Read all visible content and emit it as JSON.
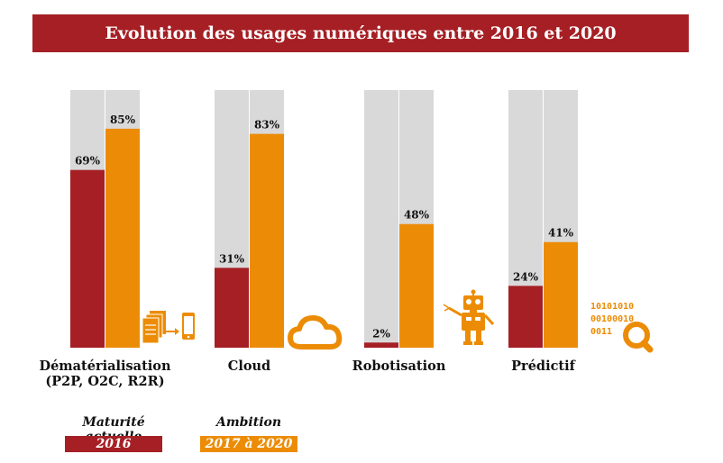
{
  "title": "Evolution des usages numériques entre 2016 et 2020",
  "colors": {
    "actual": "#a51f24",
    "ambition": "#ec8c06",
    "track": "#d9d9d9",
    "banner": "#a51f24"
  },
  "icons": [
    "documents-to-mobile-icon",
    "cloud-icon",
    "robot-icon",
    "binary-search-icon"
  ],
  "chart_data": {
    "type": "bar",
    "title": "Evolution des usages numériques entre 2016 et 2020",
    "ylim": [
      0,
      100
    ],
    "grid": false,
    "legend_position": "bottom-left",
    "categories": [
      {
        "line1": "Dématérialisation",
        "line2": "(P2P, O2C, R2R)"
      },
      {
        "line1": "Cloud",
        "line2": ""
      },
      {
        "line1": "Robotisation",
        "line2": ""
      },
      {
        "line1": "Prédictif",
        "line2": ""
      }
    ],
    "series": [
      {
        "name": "2016",
        "values": [
          69,
          31,
          2,
          24
        ],
        "labels": [
          "69%",
          "31%",
          "2%",
          "24%"
        ]
      },
      {
        "name": "2017 à 2020",
        "values": [
          85,
          83,
          48,
          41
        ],
        "labels": [
          "85%",
          "83%",
          "48%",
          "41%"
        ]
      }
    ]
  },
  "legend": {
    "actual": {
      "caption": "Maturité actuelle",
      "label": "2016"
    },
    "ambition": {
      "caption": "Ambition",
      "label": "2017 à 2020"
    }
  },
  "binary_text": [
    "10101010",
    "00100010",
    "0011"
  ]
}
